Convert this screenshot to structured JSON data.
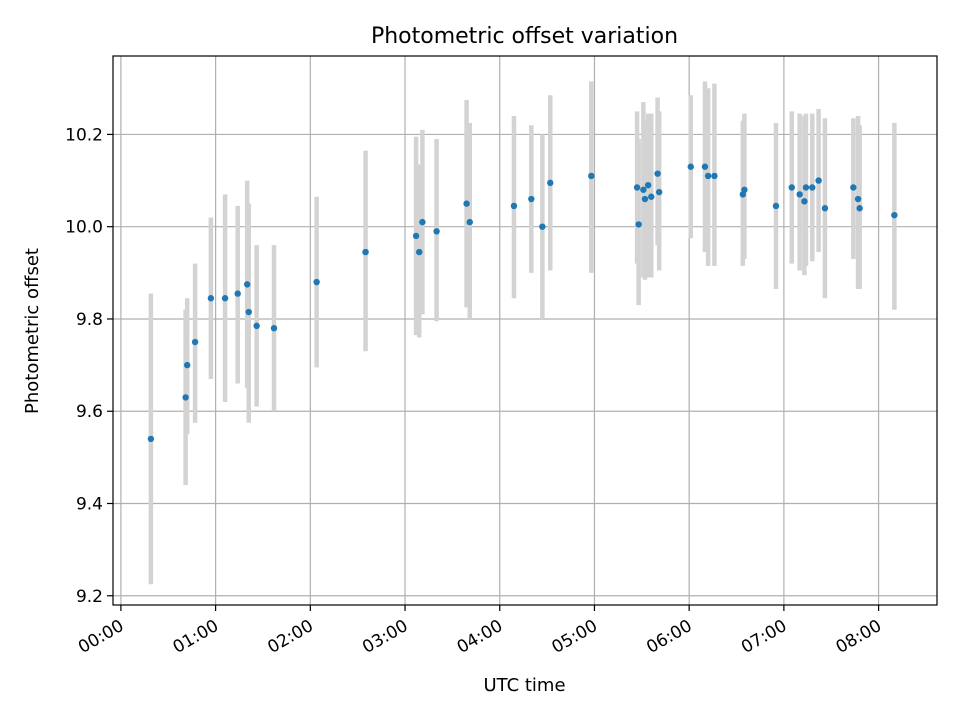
{
  "chart_data": {
    "type": "scatter",
    "title": "Photometric offset variation",
    "xlabel": "UTC time",
    "ylabel": "Photometric offset",
    "xlim": [
      "-00:05",
      "08:37"
    ],
    "ylim": [
      9.18,
      10.37
    ],
    "x_ticks": [
      "00:00",
      "01:00",
      "02:00",
      "03:00",
      "04:00",
      "05:00",
      "06:00",
      "07:00",
      "08:00"
    ],
    "y_ticks": [
      9.2,
      9.4,
      9.6,
      9.8,
      10.0,
      10.2
    ],
    "grid": true,
    "marker_color": "#1f77b4",
    "errorbar_color": "#d3d3d3",
    "points": [
      {
        "x": "00:19",
        "y": 9.54,
        "yerr_low": 9.225,
        "yerr_high": 9.855
      },
      {
        "x": "00:41",
        "y": 9.63,
        "yerr_low": 9.44,
        "yerr_high": 9.82
      },
      {
        "x": "00:42",
        "y": 9.7,
        "yerr_low": 9.55,
        "yerr_high": 9.845
      },
      {
        "x": "00:47",
        "y": 9.75,
        "yerr_low": 9.575,
        "yerr_high": 9.92
      },
      {
        "x": "00:57",
        "y": 9.845,
        "yerr_low": 9.67,
        "yerr_high": 10.02
      },
      {
        "x": "01:06",
        "y": 9.845,
        "yerr_low": 9.62,
        "yerr_high": 10.07
      },
      {
        "x": "01:14",
        "y": 9.855,
        "yerr_low": 9.66,
        "yerr_high": 10.045
      },
      {
        "x": "01:20",
        "y": 9.875,
        "yerr_low": 9.65,
        "yerr_high": 10.1
      },
      {
        "x": "01:21",
        "y": 9.815,
        "yerr_low": 9.575,
        "yerr_high": 10.05
      },
      {
        "x": "01:26",
        "y": 9.785,
        "yerr_low": 9.61,
        "yerr_high": 9.96
      },
      {
        "x": "01:37",
        "y": 9.78,
        "yerr_low": 9.6,
        "yerr_high": 9.96
      },
      {
        "x": "02:04",
        "y": 9.88,
        "yerr_low": 9.695,
        "yerr_high": 10.065
      },
      {
        "x": "02:35",
        "y": 9.945,
        "yerr_low": 9.73,
        "yerr_high": 10.165
      },
      {
        "x": "03:07",
        "y": 9.98,
        "yerr_low": 9.765,
        "yerr_high": 10.195
      },
      {
        "x": "03:09",
        "y": 9.945,
        "yerr_low": 9.76,
        "yerr_high": 10.135
      },
      {
        "x": "03:11",
        "y": 10.01,
        "yerr_low": 9.81,
        "yerr_high": 10.21
      },
      {
        "x": "03:20",
        "y": 9.99,
        "yerr_low": 9.795,
        "yerr_high": 10.19
      },
      {
        "x": "03:39",
        "y": 10.05,
        "yerr_low": 9.825,
        "yerr_high": 10.275
      },
      {
        "x": "03:41",
        "y": 10.01,
        "yerr_low": 9.8,
        "yerr_high": 10.225
      },
      {
        "x": "04:09",
        "y": 10.045,
        "yerr_low": 9.845,
        "yerr_high": 10.24
      },
      {
        "x": "04:20",
        "y": 10.06,
        "yerr_low": 9.9,
        "yerr_high": 10.22
      },
      {
        "x": "04:27",
        "y": 10.0,
        "yerr_low": 9.8,
        "yerr_high": 10.2
      },
      {
        "x": "04:32",
        "y": 10.095,
        "yerr_low": 9.905,
        "yerr_high": 10.285
      },
      {
        "x": "04:58",
        "y": 10.11,
        "yerr_low": 9.9,
        "yerr_high": 10.315
      },
      {
        "x": "05:27",
        "y": 10.085,
        "yerr_low": 9.92,
        "yerr_high": 10.25
      },
      {
        "x": "05:28",
        "y": 10.005,
        "yerr_low": 9.83,
        "yerr_high": 10.19
      },
      {
        "x": "05:31",
        "y": 10.08,
        "yerr_low": 9.89,
        "yerr_high": 10.27
      },
      {
        "x": "05:32",
        "y": 10.06,
        "yerr_low": 9.885,
        "yerr_high": 10.23
      },
      {
        "x": "05:34",
        "y": 10.09,
        "yerr_low": 9.89,
        "yerr_high": 10.245
      },
      {
        "x": "05:36",
        "y": 10.065,
        "yerr_low": 9.89,
        "yerr_high": 10.245
      },
      {
        "x": "05:40",
        "y": 10.115,
        "yerr_low": 9.96,
        "yerr_high": 10.28
      },
      {
        "x": "05:41",
        "y": 10.075,
        "yerr_low": 9.905,
        "yerr_high": 10.25
      },
      {
        "x": "06:01",
        "y": 10.13,
        "yerr_low": 9.975,
        "yerr_high": 10.285
      },
      {
        "x": "06:10",
        "y": 10.13,
        "yerr_low": 9.945,
        "yerr_high": 10.315
      },
      {
        "x": "06:12",
        "y": 10.11,
        "yerr_low": 9.915,
        "yerr_high": 10.3
      },
      {
        "x": "06:16",
        "y": 10.11,
        "yerr_low": 9.915,
        "yerr_high": 10.31
      },
      {
        "x": "06:34",
        "y": 10.07,
        "yerr_low": 9.915,
        "yerr_high": 10.23
      },
      {
        "x": "06:35",
        "y": 10.08,
        "yerr_low": 9.93,
        "yerr_high": 10.245
      },
      {
        "x": "06:55",
        "y": 10.045,
        "yerr_low": 9.865,
        "yerr_high": 10.225
      },
      {
        "x": "07:05",
        "y": 10.085,
        "yerr_low": 9.92,
        "yerr_high": 10.25
      },
      {
        "x": "07:10",
        "y": 10.07,
        "yerr_low": 9.905,
        "yerr_high": 10.245
      },
      {
        "x": "07:13",
        "y": 10.055,
        "yerr_low": 9.895,
        "yerr_high": 10.24
      },
      {
        "x": "07:14",
        "y": 10.085,
        "yerr_low": 9.915,
        "yerr_high": 10.245
      },
      {
        "x": "07:18",
        "y": 10.085,
        "yerr_low": 9.925,
        "yerr_high": 10.245
      },
      {
        "x": "07:22",
        "y": 10.1,
        "yerr_low": 9.945,
        "yerr_high": 10.255
      },
      {
        "x": "07:26",
        "y": 10.04,
        "yerr_low": 9.845,
        "yerr_high": 10.235
      },
      {
        "x": "07:44",
        "y": 10.085,
        "yerr_low": 9.93,
        "yerr_high": 10.235
      },
      {
        "x": "07:47",
        "y": 10.06,
        "yerr_low": 9.865,
        "yerr_high": 10.24
      },
      {
        "x": "07:48",
        "y": 10.04,
        "yerr_low": 9.865,
        "yerr_high": 10.22
      },
      {
        "x": "08:10",
        "y": 10.025,
        "yerr_low": 9.82,
        "yerr_high": 10.225
      }
    ]
  }
}
